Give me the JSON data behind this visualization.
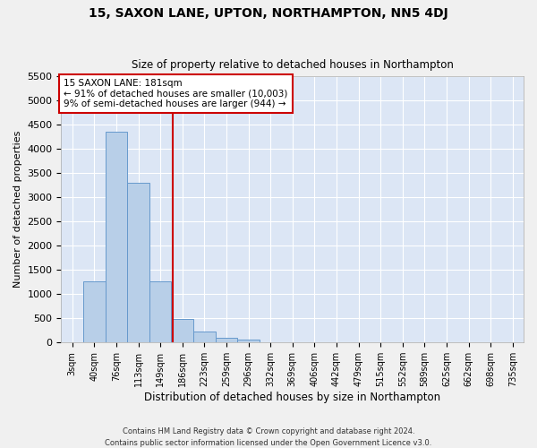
{
  "title": "15, SAXON LANE, UPTON, NORTHAMPTON, NN5 4DJ",
  "subtitle": "Size of property relative to detached houses in Northampton",
  "xlabel": "Distribution of detached houses by size in Northampton",
  "ylabel": "Number of detached properties",
  "footer_line1": "Contains HM Land Registry data © Crown copyright and database right 2024.",
  "footer_line2": "Contains public sector information licensed under the Open Government Licence v3.0.",
  "bin_labels": [
    "3sqm",
    "40sqm",
    "76sqm",
    "113sqm",
    "149sqm",
    "186sqm",
    "223sqm",
    "259sqm",
    "296sqm",
    "332sqm",
    "369sqm",
    "406sqm",
    "442sqm",
    "479sqm",
    "515sqm",
    "552sqm",
    "589sqm",
    "625sqm",
    "662sqm",
    "698sqm",
    "735sqm"
  ],
  "bar_values": [
    0,
    1260,
    4350,
    3300,
    1270,
    480,
    225,
    100,
    65,
    0,
    0,
    0,
    0,
    0,
    0,
    0,
    0,
    0,
    0,
    0,
    0
  ],
  "bar_color": "#b8cfe8",
  "bar_edge_color": "#6699cc",
  "background_color": "#dce6f5",
  "grid_color": "#ffffff",
  "fig_background": "#f0f0f0",
  "vline_x": 4.55,
  "vline_color": "#cc0000",
  "annotation_text_line1": "15 SAXON LANE: 181sqm",
  "annotation_text_line2": "← 91% of detached houses are smaller (10,003)",
  "annotation_text_line3": "9% of semi-detached houses are larger (944) →",
  "annotation_box_color": "#cc0000",
  "ylim_max": 5500,
  "yticks": [
    0,
    500,
    1000,
    1500,
    2000,
    2500,
    3000,
    3500,
    4000,
    4500,
    5000,
    5500
  ]
}
